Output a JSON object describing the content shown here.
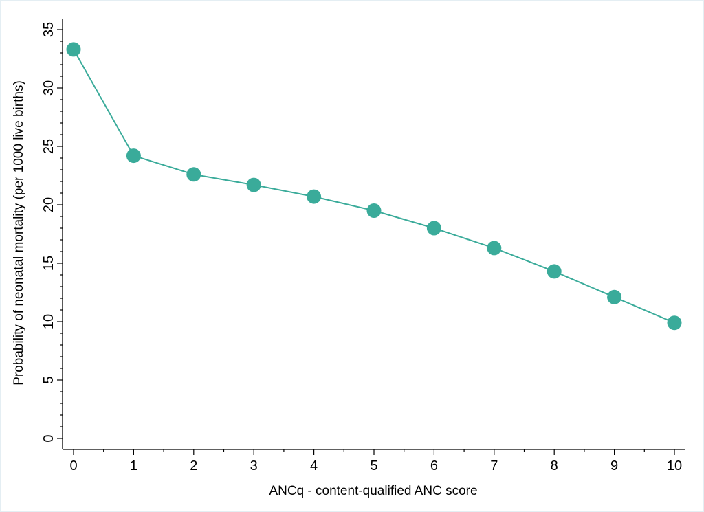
{
  "chart_data": {
    "type": "line",
    "xlabel": "ANCq - content-qualified ANC score",
    "ylabel": "Probability of neonatal mortality (per 1000 live births)",
    "x": [
      0,
      1,
      2,
      3,
      4,
      5,
      6,
      7,
      8,
      9,
      10
    ],
    "series": [
      {
        "values": [
          33.3,
          24.2,
          22.6,
          21.7,
          20.7,
          19.5,
          18.0,
          16.3,
          14.3,
          12.1,
          9.9
        ],
        "color": "#3aab9a",
        "marker": "circle"
      }
    ],
    "xlim": [
      0,
      10
    ],
    "ylim": [
      0,
      35
    ],
    "xticks": [
      "0",
      "1",
      "2",
      "3",
      "4",
      "5",
      "6",
      "7",
      "8",
      "9",
      "10"
    ],
    "yticks": [
      "0",
      "5",
      "10",
      "15",
      "20",
      "25",
      "30",
      "35"
    ],
    "grid": false,
    "legend": "none"
  }
}
